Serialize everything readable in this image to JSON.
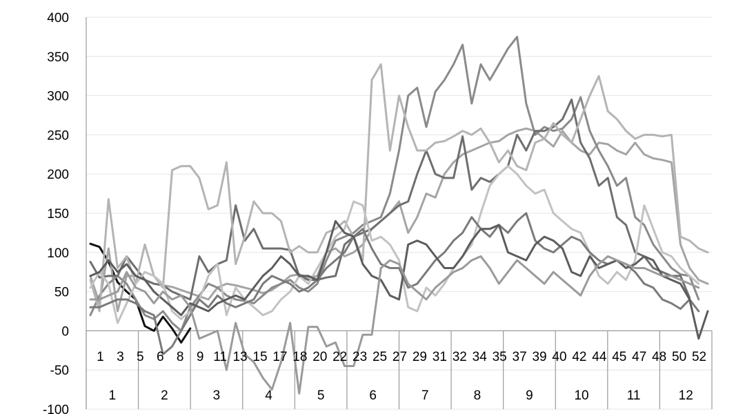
{
  "chart_data": {
    "type": "line",
    "title": "",
    "xlabel": "",
    "ylabel": "",
    "ylim": [
      -100,
      400
    ],
    "y_ticks": [
      400,
      350,
      300,
      250,
      200,
      150,
      100,
      50,
      0,
      -50,
      -100
    ],
    "grid": true,
    "week_tick_labels": [
      "1",
      "3",
      "5",
      "6",
      "8",
      "9",
      "11",
      "13",
      "15",
      "17",
      "18",
      "20",
      "22",
      "23",
      "25",
      "27",
      "29",
      "31",
      "32",
      "34",
      "35",
      "37",
      "39",
      "40",
      "42",
      "44",
      "45",
      "47",
      "48",
      "50",
      "52"
    ],
    "month_labels": [
      "1",
      "2",
      "3",
      "4",
      "5",
      "6",
      "7",
      "8",
      "9",
      "10",
      "11",
      "12"
    ],
    "month_week_counts": [
      5,
      4,
      5,
      4,
      5,
      4,
      5,
      4,
      5,
      4,
      4,
      4
    ],
    "series": [
      {
        "color": "#111111",
        "values": [
          111,
          107,
          88,
          62,
          50,
          40,
          6,
          0,
          18,
          3,
          -15,
          3,
          null,
          null,
          null,
          null,
          null,
          null,
          null,
          null,
          null,
          null,
          null,
          null,
          null,
          null,
          null,
          null,
          null,
          null,
          null,
          null,
          null,
          null,
          null,
          null,
          null,
          null,
          null,
          null,
          null,
          null,
          null,
          null,
          null,
          null,
          null,
          null,
          null,
          null,
          null,
          null
        ]
      },
      {
        "color": "#a4a4a4",
        "values": [
          70,
          35,
          105,
          25,
          70,
          70,
          65,
          60,
          58,
          56,
          52,
          48,
          44,
          40,
          55,
          60,
          58,
          55,
          52,
          48,
          52,
          60,
          70,
          72,
          68,
          70,
          100,
          105,
          95,
          100,
          110,
          130,
          140,
          150,
          165,
          125,
          145,
          175,
          170,
          200,
          215,
          225,
          230,
          235,
          240,
          242,
          250,
          255,
          258,
          255,
          245,
          235,
          255,
          240,
          230,
          225,
          240,
          238,
          230,
          225,
          240,
          225,
          220,
          218,
          215,
          110,
          80,
          65,
          60
        ]
      },
      {
        "color": "#8a8a8a",
        "values": [
          20,
          45,
          60,
          70,
          60,
          40,
          20,
          15,
          25,
          10,
          0,
          30,
          45,
          60,
          55,
          45,
          40,
          38,
          35,
          45,
          55,
          60,
          65,
          55,
          50,
          60,
          90,
          115,
          120,
          125,
          135,
          140,
          145,
          175,
          230,
          300,
          310,
          260,
          305,
          320,
          340,
          365,
          290,
          340,
          320,
          340,
          360,
          375,
          290,
          250,
          260,
          255,
          258,
          270,
          298,
          255,
          230,
          210,
          185,
          195,
          145,
          135,
          110,
          95,
          80,
          72,
          70,
          40
        ]
      },
      {
        "color": "#6e6e6e",
        "values": [
          88,
          68,
          70,
          70,
          95,
          80,
          65,
          60,
          58,
          50,
          45,
          40,
          95,
          75,
          85,
          90,
          160,
          115,
          130,
          105,
          105,
          105,
          103,
          70,
          65,
          65,
          68,
          70,
          110,
          120,
          125,
          130,
          140,
          150,
          160,
          165,
          200,
          230,
          200,
          195,
          195,
          248,
          180,
          195,
          190,
          200,
          210,
          250,
          230,
          255,
          255,
          260,
          270,
          295,
          240,
          220,
          185,
          195,
          145,
          135,
          100,
          95,
          80,
          75,
          70,
          70,
          42
        ]
      },
      {
        "color": "#b4b4b4",
        "values": [
          65,
          25,
          168,
          80,
          95,
          60,
          110,
          70,
          55,
          205,
          210,
          210,
          195,
          155,
          160,
          215,
          85,
          120,
          165,
          150,
          150,
          140,
          100,
          108,
          100,
          100,
          125,
          130,
          140,
          120,
          90,
          320,
          340,
          230,
          300,
          260,
          230,
          230,
          240,
          242,
          248,
          255,
          250,
          258,
          240,
          215,
          230,
          210,
          205,
          240,
          245,
          265,
          250,
          240,
          270,
          300,
          325,
          280,
          270,
          255,
          245,
          250,
          250,
          248,
          250,
          120,
          115,
          105,
          100
        ]
      },
      {
        "color": "#c2c2c2",
        "values": [
          55,
          75,
          60,
          10,
          35,
          60,
          75,
          70,
          60,
          25,
          15,
          25,
          40,
          70,
          85,
          20,
          55,
          40,
          30,
          20,
          25,
          40,
          50,
          70,
          60,
          80,
          100,
          120,
          130,
          165,
          160,
          115,
          120,
          110,
          90,
          30,
          25,
          55,
          45,
          60,
          80,
          95,
          110,
          150,
          185,
          200,
          210,
          200,
          185,
          175,
          180,
          150,
          140,
          130,
          125,
          100,
          70,
          60,
          75,
          65,
          90,
          160,
          130,
          100,
          95,
          80,
          70,
          60
        ]
      },
      {
        "color": "#7a7a7a",
        "values": [
          30,
          30,
          35,
          40,
          40,
          35,
          25,
          20,
          -30,
          -20,
          0,
          20,
          40,
          30,
          45,
          35,
          30,
          35,
          40,
          60,
          70,
          65,
          60,
          50,
          55,
          65,
          80,
          90,
          100,
          120,
          130,
          105,
          85,
          80,
          80,
          55,
          60,
          75,
          90,
          100,
          115,
          125,
          145,
          130,
          120,
          135,
          125,
          140,
          150,
          115,
          105,
          100,
          110,
          120,
          115,
          100,
          90,
          85,
          90,
          85,
          75,
          60,
          55,
          40,
          35,
          28,
          40,
          25
        ]
      },
      {
        "color": "#5c5c5c",
        "values": [
          70,
          75,
          90,
          75,
          85,
          70,
          65,
          50,
          40,
          30,
          20,
          35,
          30,
          25,
          35,
          40,
          45,
          40,
          55,
          70,
          80,
          95,
          85,
          70,
          70,
          65,
          100,
          140,
          125,
          120,
          85,
          70,
          65,
          45,
          40,
          110,
          115,
          110,
          95,
          80,
          80,
          95,
          115,
          130,
          130,
          135,
          100,
          95,
          90,
          110,
          120,
          115,
          105,
          75,
          70,
          95,
          80,
          85,
          90,
          80,
          85,
          95,
          90,
          70,
          65,
          60,
          40,
          -10,
          25
        ]
      },
      {
        "color": "#9a9a9a",
        "values": [
          40,
          40,
          45,
          50,
          75,
          55,
          50,
          35,
          50,
          40,
          45,
          30,
          -10,
          -5,
          0,
          -50,
          10,
          -30,
          -40,
          -60,
          -75,
          -40,
          10,
          -80,
          5,
          5,
          -20,
          -15,
          -45,
          -45,
          -5,
          -5,
          80,
          90,
          85,
          60,
          50,
          40,
          55,
          65,
          75,
          80,
          90,
          95,
          80,
          60,
          75,
          90,
          80,
          70,
          60,
          75,
          65,
          55,
          45,
          70,
          85,
          95,
          90,
          85,
          80,
          80,
          75,
          70,
          70,
          65,
          60,
          55
        ]
      }
    ]
  }
}
